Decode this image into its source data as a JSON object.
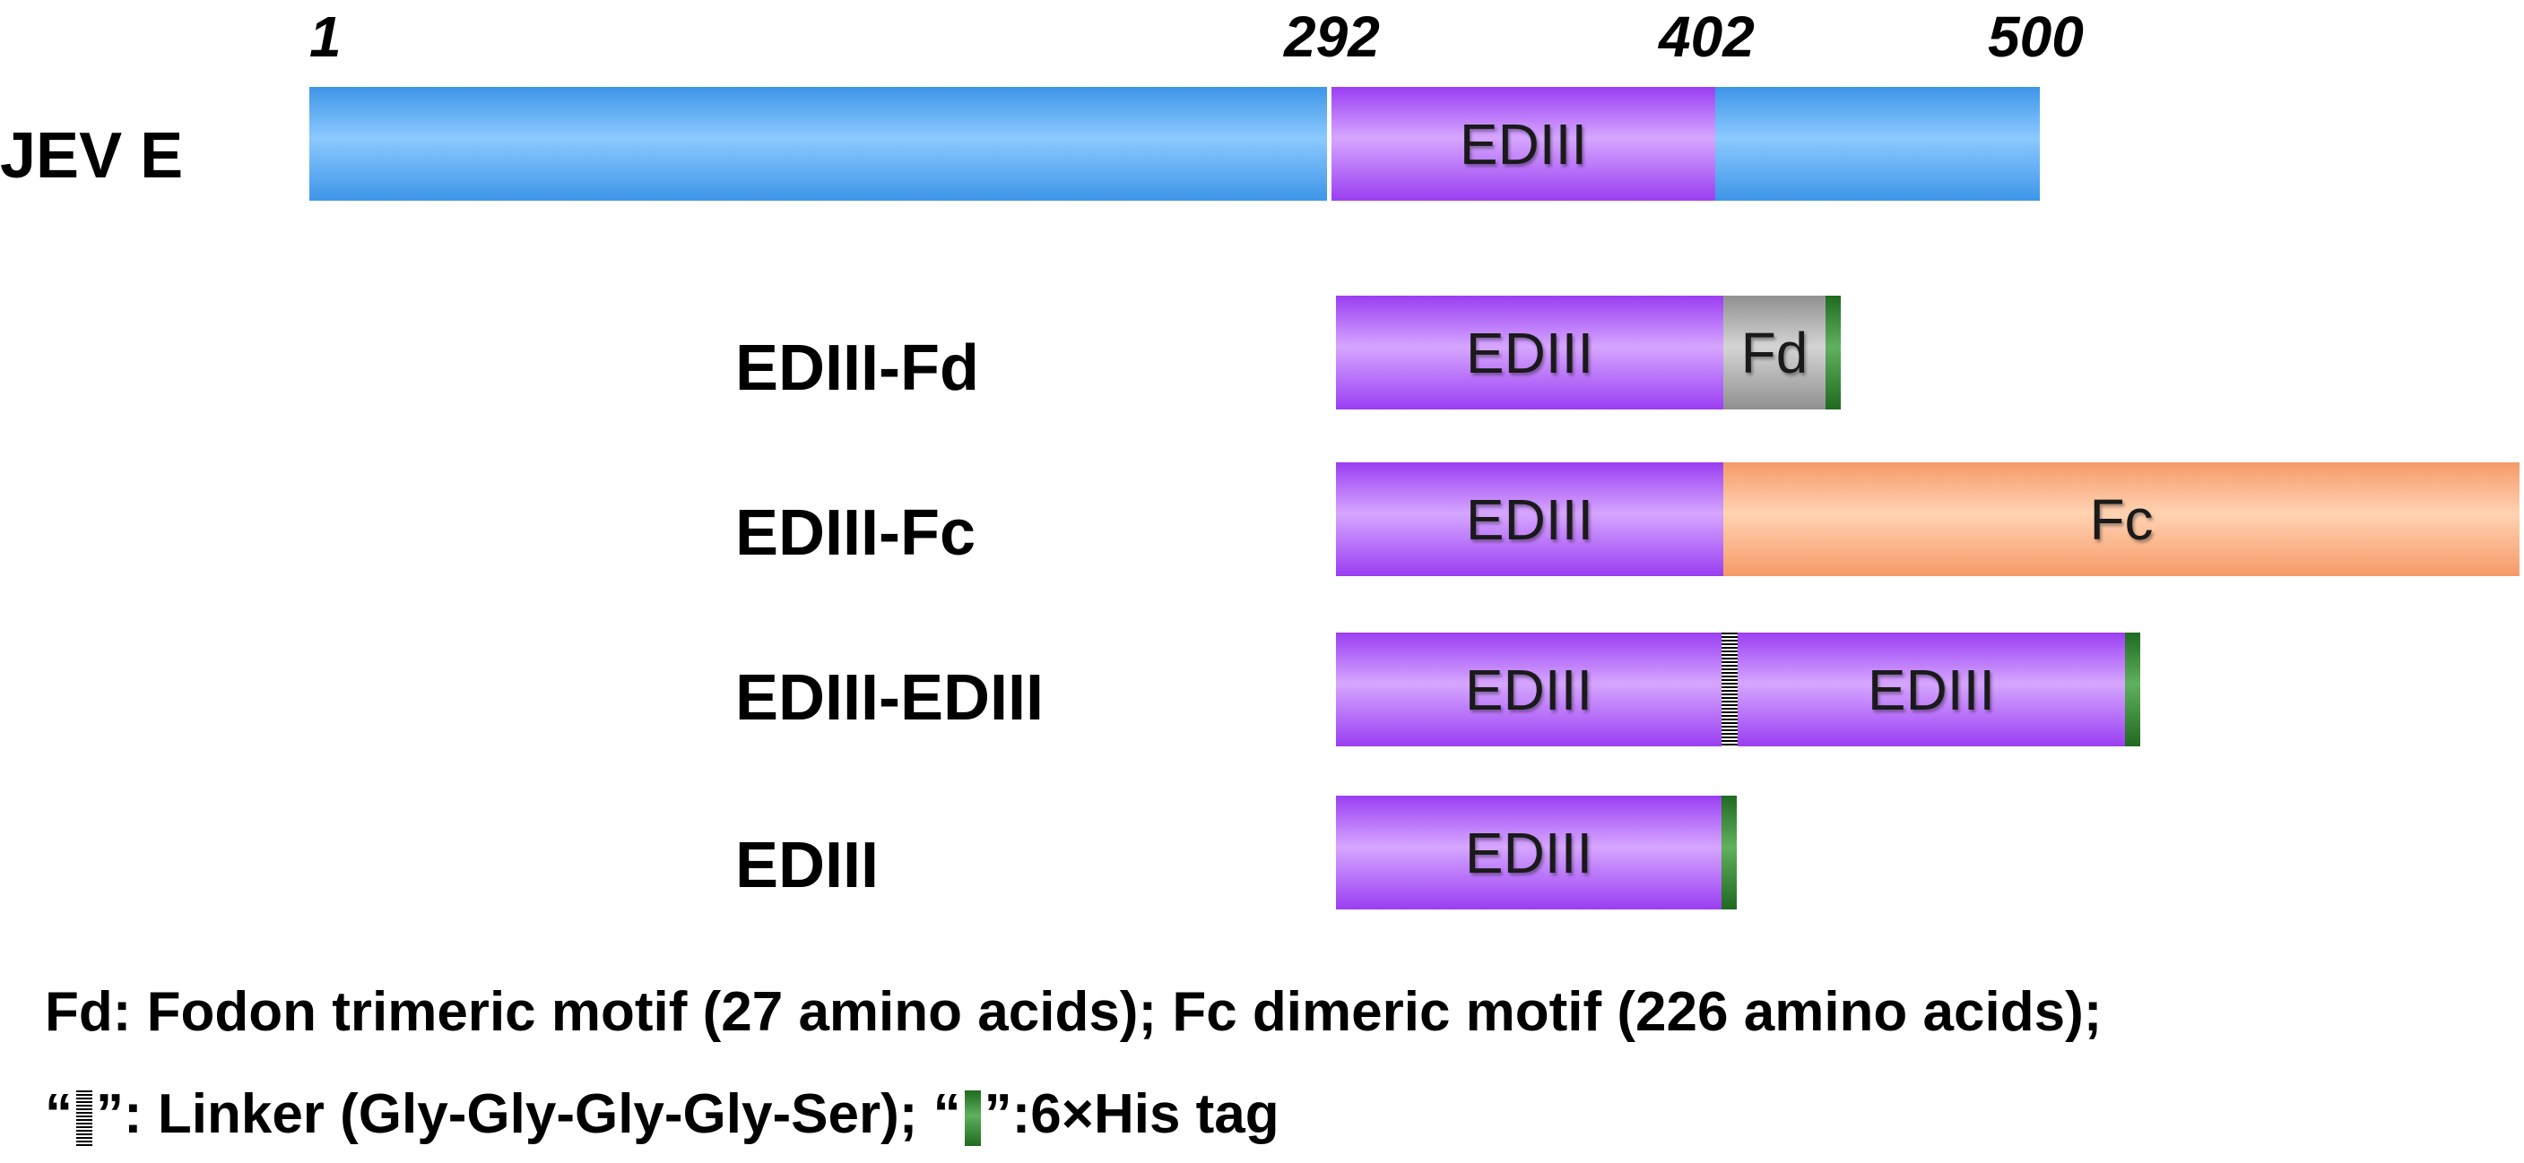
{
  "positions": {
    "p1": "1",
    "p292": "292",
    "p402": "402",
    "p500": "500"
  },
  "rows": {
    "jev_e": "JEV E",
    "ediii_fd": "EDIII-Fd",
    "ediii_fc": "EDIII-Fc",
    "ediii_ediii": "EDIII-EDIII",
    "ediii": "EDIII"
  },
  "segments": {
    "ediii": "EDIII",
    "fd": "Fd",
    "fc": "Fc"
  },
  "legend": {
    "line1": "Fd: Fodon trimeric motif (27 amino acids); Fc dimeric motif (226 amino acids);",
    "line2_open1": "“",
    "line2_linker": "”: Linker (Gly-Gly-Gly-Gly-Ser); “",
    "line2_his": "”:6×His tag"
  },
  "colors": {
    "full_length": "#3d95e8",
    "ediii": "#9a3ef2",
    "fd": "#909090",
    "fc": "#f59a68",
    "his_tag": "#1f6a1f",
    "linker": "#000000"
  }
}
